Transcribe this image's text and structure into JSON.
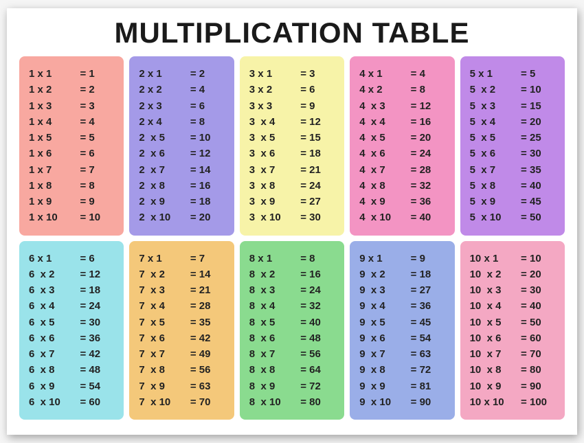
{
  "title": "MULTIPLICATION TABLE",
  "background_color": "#ffffff",
  "text_color": "#222222",
  "card_font_size": 15,
  "title_font_size": 42,
  "border_radius": 8,
  "grid_columns": 5,
  "gap": 8,
  "tables": [
    {
      "n": 1,
      "color": "#f8a8a0",
      "rows": [
        [
          "1 x 1",
          "= 1"
        ],
        [
          "1 x 2",
          "= 2"
        ],
        [
          "1 x 3",
          "= 3"
        ],
        [
          "1 x 4",
          "= 4"
        ],
        [
          "1 x 5",
          "= 5"
        ],
        [
          "1 x 6",
          "= 6"
        ],
        [
          "1 x 7",
          "= 7"
        ],
        [
          "1 x 8",
          "= 8"
        ],
        [
          "1 x 9",
          "= 9"
        ],
        [
          "1 x 10",
          "= 10"
        ]
      ]
    },
    {
      "n": 2,
      "color": "#a49ae8",
      "rows": [
        [
          "2 x 1",
          "= 2"
        ],
        [
          "2 x 2",
          "= 4"
        ],
        [
          "2 x 3",
          "= 6"
        ],
        [
          "2 x 4",
          "= 8"
        ],
        [
          "2  x 5",
          "= 10"
        ],
        [
          "2  x 6",
          "= 12"
        ],
        [
          "2  x 7",
          "= 14"
        ],
        [
          "2  x 8",
          "= 16"
        ],
        [
          "2  x 9",
          "= 18"
        ],
        [
          "2  x 10",
          "= 20"
        ]
      ]
    },
    {
      "n": 3,
      "color": "#f7f3a8",
      "rows": [
        [
          "3 x 1",
          "= 3"
        ],
        [
          "3 x 2",
          "= 6"
        ],
        [
          "3 x 3",
          "= 9"
        ],
        [
          "3  x 4",
          "= 12"
        ],
        [
          "3  x 5",
          "= 15"
        ],
        [
          "3  x 6",
          "= 18"
        ],
        [
          "3  x 7",
          "= 21"
        ],
        [
          "3  x 8",
          "= 24"
        ],
        [
          "3  x 9",
          "= 27"
        ],
        [
          "3  x 10",
          "= 30"
        ]
      ]
    },
    {
      "n": 4,
      "color": "#f394c3",
      "rows": [
        [
          "4 x 1",
          "= 4"
        ],
        [
          "4 x 2",
          "= 8"
        ],
        [
          "4  x 3",
          "= 12"
        ],
        [
          "4  x 4",
          "= 16"
        ],
        [
          "4  x 5",
          "= 20"
        ],
        [
          "4  x 6",
          "= 24"
        ],
        [
          "4  x 7",
          "= 28"
        ],
        [
          "4  x 8",
          "= 32"
        ],
        [
          "4  x 9",
          "= 36"
        ],
        [
          "4  x 10",
          "= 40"
        ]
      ]
    },
    {
      "n": 5,
      "color": "#c08ae8",
      "rows": [
        [
          "5 x 1",
          "= 5"
        ],
        [
          "5  x 2",
          "= 10"
        ],
        [
          "5  x 3",
          "= 15"
        ],
        [
          "5  x 4",
          "= 20"
        ],
        [
          "5  x 5",
          "= 25"
        ],
        [
          "5  x 6",
          "= 30"
        ],
        [
          "5  x 7",
          "= 35"
        ],
        [
          "5  x 8",
          "= 40"
        ],
        [
          "5  x 9",
          "= 45"
        ],
        [
          "5  x 10",
          "= 50"
        ]
      ]
    },
    {
      "n": 6,
      "color": "#9ae3ea",
      "rows": [
        [
          "6 x 1",
          "= 6"
        ],
        [
          "6  x 2",
          "= 12"
        ],
        [
          "6  x 3",
          "= 18"
        ],
        [
          "6  x 4",
          "= 24"
        ],
        [
          "6  x 5",
          "= 30"
        ],
        [
          "6  x 6",
          "= 36"
        ],
        [
          "6  x 7",
          "= 42"
        ],
        [
          "6  x 8",
          "= 48"
        ],
        [
          "6  x 9",
          "= 54"
        ],
        [
          "6  x 10",
          "= 60"
        ]
      ]
    },
    {
      "n": 7,
      "color": "#f4c87a",
      "rows": [
        [
          "7 x 1",
          "= 7"
        ],
        [
          "7  x 2",
          "= 14"
        ],
        [
          "7  x 3",
          "= 21"
        ],
        [
          "7  x 4",
          "= 28"
        ],
        [
          "7  x 5",
          "= 35"
        ],
        [
          "7  x 6",
          "= 42"
        ],
        [
          "7  x 7",
          "= 49"
        ],
        [
          "7  x 8",
          "= 56"
        ],
        [
          "7  x 9",
          "= 63"
        ],
        [
          "7  x 10",
          "= 70"
        ]
      ]
    },
    {
      "n": 8,
      "color": "#8adb8f",
      "rows": [
        [
          "8 x 1",
          "= 8"
        ],
        [
          "8  x 2",
          "= 16"
        ],
        [
          "8  x 3",
          "= 24"
        ],
        [
          "8  x 4",
          "= 32"
        ],
        [
          "8  x 5",
          "= 40"
        ],
        [
          "8  x 6",
          "= 48"
        ],
        [
          "8  x 7",
          "= 56"
        ],
        [
          "8  x 8",
          "= 64"
        ],
        [
          "8  x 9",
          "= 72"
        ],
        [
          "8  x 10",
          "= 80"
        ]
      ]
    },
    {
      "n": 9,
      "color": "#9aaee8",
      "rows": [
        [
          "9 x 1",
          "= 9"
        ],
        [
          "9  x 2",
          "= 18"
        ],
        [
          "9  x 3",
          "= 27"
        ],
        [
          "9  x 4",
          "= 36"
        ],
        [
          "9  x 5",
          "= 45"
        ],
        [
          "9  x 6",
          "= 54"
        ],
        [
          "9  x 7",
          "= 63"
        ],
        [
          "9  x 8",
          "= 72"
        ],
        [
          "9  x 9",
          "= 81"
        ],
        [
          "9  x 10",
          "= 90"
        ]
      ]
    },
    {
      "n": 10,
      "color": "#f4a8c3",
      "rows": [
        [
          "10 x 1",
          "= 10"
        ],
        [
          "10  x 2",
          "= 20"
        ],
        [
          "10  x 3",
          "= 30"
        ],
        [
          "10  x 4",
          "= 40"
        ],
        [
          "10  x 5",
          "= 50"
        ],
        [
          "10  x 6",
          "= 60"
        ],
        [
          "10  x 7",
          "= 70"
        ],
        [
          "10  x 8",
          "= 80"
        ],
        [
          "10  x 9",
          "= 90"
        ],
        [
          "10 x 10",
          "= 100"
        ]
      ]
    }
  ]
}
